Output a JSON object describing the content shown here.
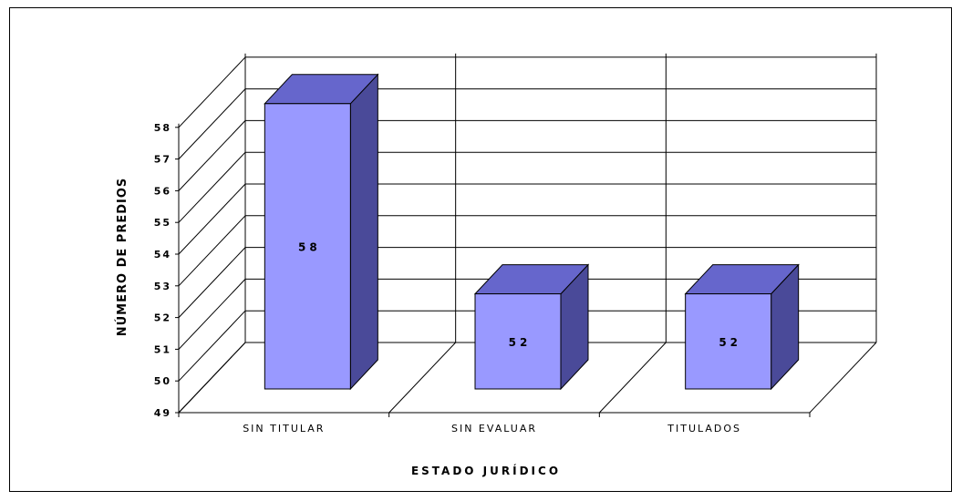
{
  "chart_data": {
    "type": "bar",
    "style": "3d-column",
    "categories": [
      "SIN TITULAR",
      "SIN EVALUAR",
      "TITULADOS"
    ],
    "values": [
      58,
      52,
      52
    ],
    "data_labels": [
      "58",
      "52",
      "52"
    ],
    "xlabel": "ESTADO JURÍDICO",
    "ylabel": "NÚMERO DE PREDIOS",
    "ylim": [
      49,
      58
    ],
    "yticks": [
      "49",
      "50",
      "51",
      "52",
      "53",
      "54",
      "55",
      "56",
      "57",
      "58"
    ],
    "grid": true,
    "legend": "none",
    "colors": {
      "bar_front": "#9999ff",
      "bar_top": "#6666cc",
      "bar_side": "#4a4a99",
      "grid": "#000000",
      "floor": "#000000"
    }
  }
}
